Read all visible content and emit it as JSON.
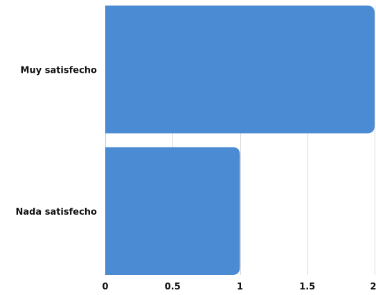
{
  "chart_data": {
    "type": "bar",
    "orientation": "horizontal",
    "categories": [
      "Muy satisfecho",
      "Nada satisfecho"
    ],
    "values": [
      2,
      1
    ],
    "xlim": [
      0,
      2
    ],
    "x_ticks": [
      "0",
      "0.5",
      "1",
      "1.5",
      "2"
    ],
    "x_tick_values": [
      0,
      0.5,
      1,
      1.5,
      2
    ],
    "grid": true,
    "legend": "none",
    "bar_color": "#4a8bd4",
    "title": "",
    "xlabel": "",
    "ylabel": ""
  }
}
